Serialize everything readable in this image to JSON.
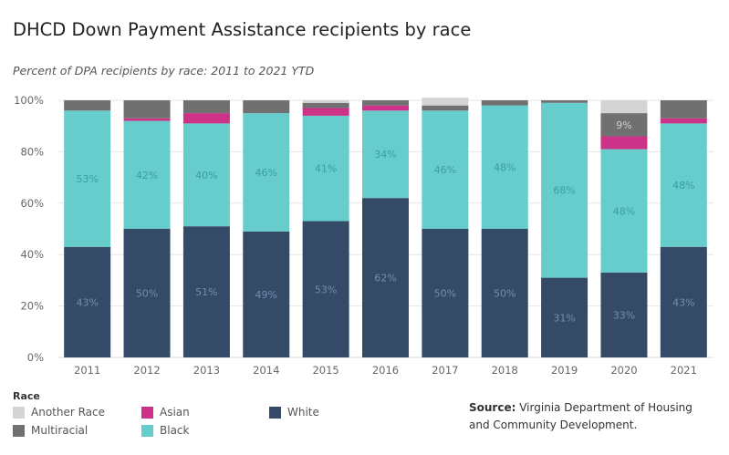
{
  "title": "DHCD Down Payment Assistance recipients by race",
  "subtitle": "Percent of DPA recipients by race: 2011 to 2021 YTD",
  "legend_title": "Race",
  "source_label": "Source:",
  "source_text": "Virginia Department of Housing and Community Development.",
  "colors": {
    "White": "#344a66",
    "Black": "#66cdcc",
    "Asian": "#cc3388",
    "Multiracial": "#707070",
    "Another Race": "#d4d4d4"
  },
  "legend": [
    {
      "name": "Another Race",
      "color": "#d4d4d4"
    },
    {
      "name": "Multiracial",
      "color": "#707070"
    },
    {
      "name": "Asian",
      "color": "#cc3388"
    },
    {
      "name": "Black",
      "color": "#66cdcc"
    },
    {
      "name": "White",
      "color": "#344a66"
    }
  ],
  "chart_data": {
    "type": "bar",
    "stacked": true,
    "categories": [
      "2011",
      "2012",
      "2013",
      "2014",
      "2015",
      "2016",
      "2017",
      "2018",
      "2019",
      "2020",
      "2021"
    ],
    "series": [
      {
        "name": "White",
        "values": [
          43,
          50,
          51,
          49,
          53,
          62,
          50,
          50,
          31,
          33,
          43
        ]
      },
      {
        "name": "Black",
        "values": [
          53,
          42,
          40,
          46,
          41,
          34,
          46,
          48,
          68,
          48,
          48
        ]
      },
      {
        "name": "Asian",
        "values": [
          0,
          1,
          4,
          0,
          3,
          2,
          0,
          0,
          0,
          5,
          2
        ]
      },
      {
        "name": "Multiracial",
        "values": [
          4,
          7,
          5,
          5,
          2,
          2,
          2,
          2,
          1,
          9,
          7
        ]
      },
      {
        "name": "Another Race",
        "values": [
          0,
          0,
          0,
          0,
          1,
          0,
          3,
          0,
          0,
          5,
          0
        ]
      }
    ],
    "data_labels": [
      {
        "series": "White",
        "labels": [
          "43%",
          "50%",
          "51%",
          "49%",
          "53%",
          "62%",
          "50%",
          "50%",
          "31%",
          "33%",
          "43%"
        ]
      },
      {
        "series": "Black",
        "labels": [
          "53%",
          "42%",
          "40%",
          "46%",
          "41%",
          "34%",
          "46%",
          "48%",
          "68%",
          "48%",
          "48%"
        ]
      },
      {
        "series": "Multiracial",
        "labels": [
          "",
          "",
          "",
          "",
          "",
          "",
          "",
          "",
          "",
          "9%",
          ""
        ]
      }
    ],
    "y_ticks": [
      "0%",
      "20%",
      "40%",
      "60%",
      "80%",
      "100%"
    ],
    "ylim": [
      0,
      100
    ],
    "gridlines": true,
    "legend_position": "bottom-left"
  }
}
